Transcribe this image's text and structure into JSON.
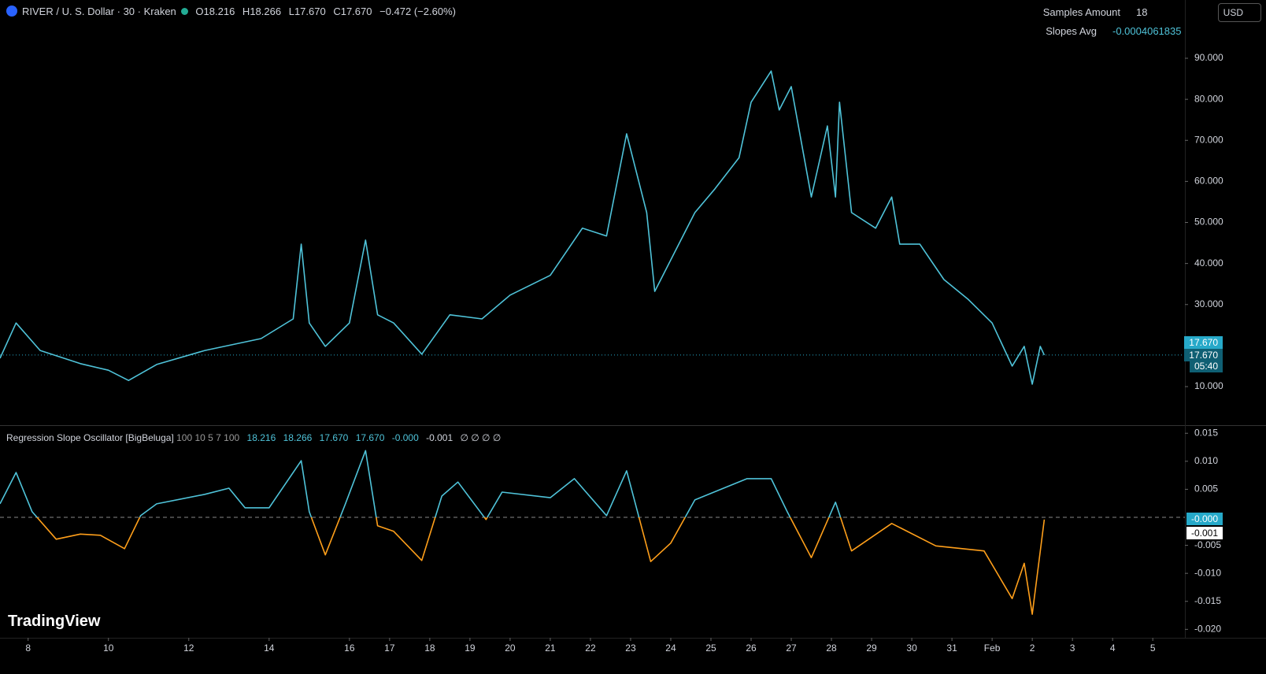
{
  "header": {
    "symbol": "RIVER / U. S. Dollar · 30 · Kraken",
    "open_label": "O",
    "open": "18.216",
    "high_label": "H",
    "high": "18.266",
    "low_label": "L",
    "low": "17.670",
    "close_label": "C",
    "close": "17.670",
    "change": "−0.472 (−2.60%)",
    "currency": "USD"
  },
  "table": {
    "rows": [
      [
        "Samples Amount",
        "18"
      ],
      [
        "Slopes Avg",
        "-0.0004061835"
      ]
    ]
  },
  "indicator": {
    "name": "Regression Slope Oscillator [BigBeluga]",
    "params": "100 10 5 7 100",
    "values": [
      "18.216",
      "18.266",
      "17.670",
      "17.670",
      "-0.000"
    ],
    "value_white": "-0.001",
    "empty": "∅ ∅ ∅ ∅"
  },
  "price_tags": [
    "17.670",
    "17.670",
    "05:40"
  ],
  "osc_tags": [
    "-0.000",
    "-0.001"
  ],
  "brand": "TradingView",
  "chart_data": [
    {
      "type": "line",
      "color": "#4fc3d9",
      "x": [
        7.3,
        7.7,
        8.3,
        9.3,
        10.0,
        10.5,
        11.2,
        12.4,
        13.8,
        14.6,
        14.8,
        15.0,
        15.4,
        16.0,
        16.4,
        16.7,
        17.1,
        17.8,
        18.5,
        19.3,
        20.0,
        21.0,
        21.8,
        22.4,
        22.9,
        23.4,
        23.6,
        24.1,
        24.6,
        25.1,
        25.7,
        26.0,
        26.5,
        26.7,
        27.0,
        27.5,
        27.9,
        28.1,
        28.2,
        28.5,
        29.1,
        29.5,
        29.7,
        30.2,
        30.8,
        31.4,
        32.0,
        32.5,
        32.8,
        33.0,
        33.2,
        33.3
      ],
      "values": [
        16.9,
        25.5,
        18.8,
        15.6,
        14,
        11.5,
        15.4,
        18.8,
        21.7,
        26.5,
        44.7,
        25.5,
        19.8,
        25.5,
        45.7,
        27.5,
        25.5,
        17.9,
        27.5,
        26.5,
        32.3,
        37.1,
        48.6,
        46.7,
        71.6,
        52.4,
        33.2,
        42.8,
        52.4,
        58.2,
        65.8,
        79.3,
        86.9,
        77.4,
        83.1,
        56.2,
        73.5,
        56.2,
        79.3,
        52.4,
        48.6,
        56.2,
        44.7,
        44.7,
        36.1,
        31.3,
        25.5,
        15,
        19.8,
        10.6,
        19.8,
        17.7
      ],
      "xlim": [
        7.3,
        36.8
      ],
      "ylim": [
        0.6,
        104.2
      ],
      "yticks": [
        {
          "value": 10,
          "label": "10.000"
        },
        {
          "value": 30,
          "label": "30.000"
        },
        {
          "value": 40,
          "label": "40.000"
        },
        {
          "value": 50,
          "label": "50.000"
        },
        {
          "value": 60,
          "label": "60.000"
        },
        {
          "value": 70,
          "label": "70.000"
        },
        {
          "value": 80,
          "label": "80.000"
        },
        {
          "value": 90,
          "label": "90.000"
        }
      ]
    },
    {
      "type": "line",
      "color": "#4fc3d9",
      "negative_color": "#ff9f1a",
      "x": [
        7.3,
        7.7,
        8.1,
        8.7,
        9.3,
        9.8,
        10.4,
        10.8,
        11.2,
        12.4,
        13.0,
        13.4,
        14.0,
        14.8,
        15.0,
        15.4,
        15.9,
        16.4,
        16.7,
        17.1,
        17.8,
        18.3,
        18.7,
        19.4,
        19.8,
        21.0,
        21.6,
        22.4,
        22.9,
        23.5,
        24.0,
        24.6,
        25.9,
        26.5,
        26.9,
        27.5,
        28.1,
        28.5,
        29.5,
        30.6,
        31.8,
        32.5,
        32.8,
        33.0,
        33.3
      ],
      "values": [
        0.0024,
        0.008,
        0.001,
        -0.0039,
        -0.003,
        -0.0032,
        -0.0056,
        0.0003,
        0.0024,
        0.0041,
        0.0052,
        0.0017,
        0.0017,
        0.0101,
        0.001,
        -0.0067,
        0.0024,
        0.0119,
        -0.0015,
        -0.0025,
        -0.0077,
        0.0038,
        0.0063,
        -0.0004,
        0.0045,
        0.0035,
        0.0069,
        0.0003,
        0.0083,
        -0.0079,
        -0.0046,
        0.0031,
        0.0069,
        0.0069,
        0.001,
        -0.0072,
        0.0027,
        -0.006,
        -0.0011,
        -0.0051,
        -0.006,
        -0.0145,
        -0.0082,
        -0.0173,
        -0.0004
      ],
      "xlim": [
        7.3,
        36.8
      ],
      "ylim": [
        -0.0215,
        0.0163
      ],
      "yticks": [
        0.015,
        {
          "value": 0.01,
          "label": "0.010"
        },
        0.005,
        -0.005,
        {
          "value": -0.01,
          "label": "-0.010"
        },
        -0.015,
        {
          "value": -0.02,
          "label": "-0.020"
        }
      ],
      "xticks": [
        8,
        10,
        12,
        14,
        16,
        17,
        18,
        19,
        20,
        21,
        22,
        23,
        24,
        25,
        26,
        27,
        28,
        29,
        30,
        31,
        {
          "value": 32,
          "label": "Feb"
        },
        {
          "value": 33,
          "label": "2"
        },
        {
          "value": 34,
          "label": "3"
        },
        {
          "value": 35,
          "label": "4"
        },
        {
          "value": 36,
          "label": "5"
        }
      ]
    }
  ]
}
